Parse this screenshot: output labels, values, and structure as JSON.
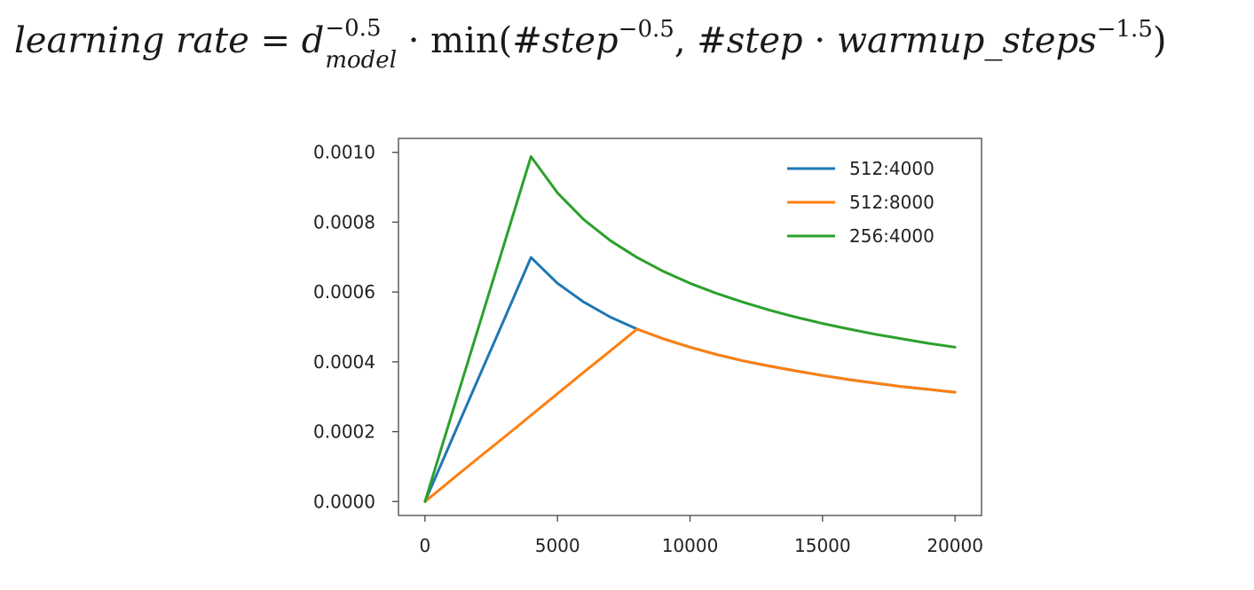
{
  "formula": {
    "lhs": "learning rate",
    "equals": " = ",
    "d_base": "d",
    "d_sup": "−0.5",
    "d_sub": "model",
    "dot1": " · ",
    "min_open": "min(",
    "step1": "#step",
    "step1_sup": "−0.5",
    "comma": ", ",
    "step2": "#step",
    "dot2": " · ",
    "warmup": "warmup_steps",
    "warmup_sup": "−1.5",
    "close": ")"
  },
  "chart_data": {
    "type": "line",
    "title": "",
    "xlabel": "",
    "ylabel": "",
    "xlim": [
      -1000,
      21000
    ],
    "ylim": [
      -4e-05,
      0.00104
    ],
    "x_ticks": [
      0,
      5000,
      10000,
      15000,
      20000
    ],
    "x_tick_labels": [
      "0",
      "5000",
      "10000",
      "15000",
      "20000"
    ],
    "y_ticks": [
      0.0,
      0.0002,
      0.0004,
      0.0006,
      0.0008,
      0.001
    ],
    "y_tick_labels": [
      "0.0000",
      "0.0002",
      "0.0004",
      "0.0006",
      "0.0008",
      "0.0010"
    ],
    "grid": false,
    "legend_position": "top-right",
    "x": [
      1,
      1000,
      2000,
      3000,
      4000,
      5000,
      6000,
      7000,
      8000,
      9000,
      10000,
      11000,
      12000,
      13000,
      14000,
      15000,
      16000,
      17000,
      18000,
      19000,
      20000
    ],
    "series": [
      {
        "name": "512:4000",
        "color": "#1f77b4",
        "values": [
          0.0,
          0.000175,
          0.00035,
          0.000524,
          0.000699,
          0.000625,
          0.000571,
          0.000528,
          0.000494,
          0.000466,
          0.000442,
          0.000421,
          0.000403,
          0.000388,
          0.000374,
          0.000361,
          0.000349,
          0.000339,
          0.000329,
          0.000321,
          0.000313
        ]
      },
      {
        "name": "512:8000",
        "color": "#ff7f0e",
        "values": [
          0.0,
          6.18e-05,
          0.000124,
          0.000185,
          0.000247,
          0.000309,
          0.000371,
          0.000432,
          0.000494,
          0.000466,
          0.000442,
          0.000421,
          0.000403,
          0.000388,
          0.000374,
          0.000361,
          0.000349,
          0.000339,
          0.000329,
          0.000321,
          0.000313
        ]
      },
      {
        "name": "256:4000",
        "color": "#2ca02c",
        "values": [
          0.0,
          0.000247,
          0.000494,
          0.000741,
          0.000988,
          0.000884,
          0.000807,
          0.000747,
          0.000699,
          0.000659,
          0.000625,
          0.000596,
          0.000571,
          0.000548,
          0.000528,
          0.00051,
          0.000494,
          0.000479,
          0.000466,
          0.000453,
          0.000442
        ]
      }
    ]
  }
}
